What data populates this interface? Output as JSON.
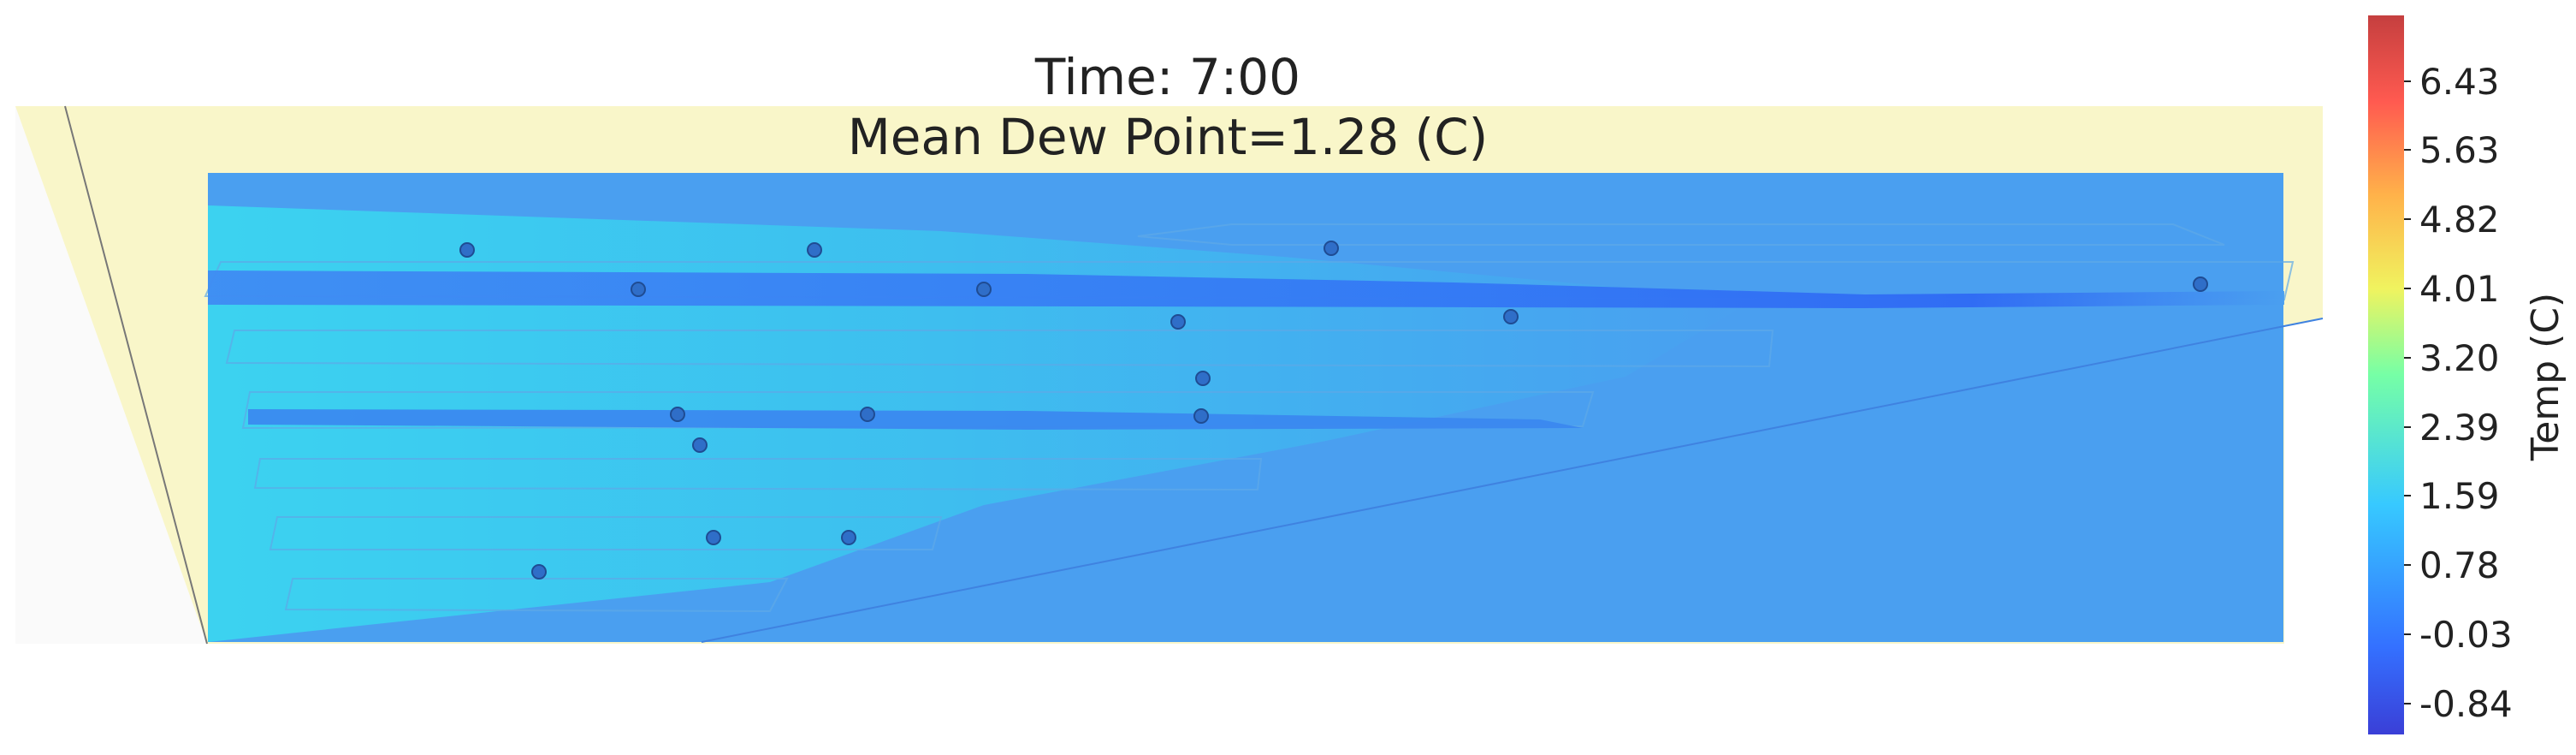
{
  "header": {
    "time_label": "Time: 7:00",
    "mean_label": "Mean Dew Point=1.28 (C)"
  },
  "colorbar": {
    "label": "Temp (C)",
    "ticks": [
      "6.43",
      "5.63",
      "4.82",
      "4.01",
      "3.20",
      "2.39",
      "1.59",
      "0.78",
      "-0.03",
      "-0.84"
    ],
    "tick_values": [
      6.43,
      5.63,
      4.82,
      4.01,
      3.2,
      2.39,
      1.59,
      0.78,
      -0.03,
      -0.84
    ],
    "range": [
      -1.2,
      7.2
    ],
    "colors": [
      "#3b3bdf",
      "#3a7bff",
      "#38d4ff",
      "#6effb0",
      "#f2f56a",
      "#ffb347",
      "#ff5a50",
      "#c93a3a"
    ]
  },
  "chart_data": {
    "type": "heatmap",
    "title": "Time: 7:00",
    "subtitle": "Mean Dew Point=1.28 (C)",
    "colorbar_label": "Temp (C)",
    "value_range": [
      -0.84,
      6.43
    ],
    "mean_value": 1.28,
    "background_color": "#4a9ff0",
    "building_outline_color": "#f9f6c9",
    "sensor_color": "#2f6ec8"
  }
}
